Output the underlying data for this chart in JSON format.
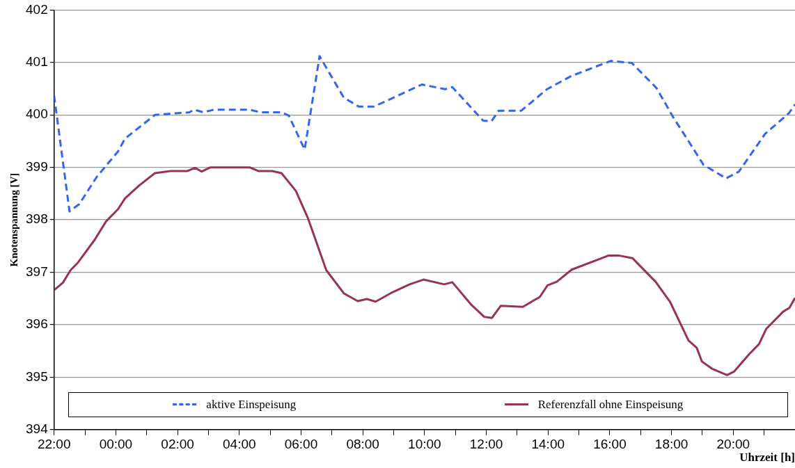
{
  "chart_data": {
    "type": "line",
    "xlabel": "Uhrzeit [h]",
    "ylabel": "Knotenspannung [V]",
    "xlim": [
      "2000-01-01T22:00",
      "2000-01-02T22:00"
    ],
    "ylim": [
      394,
      402
    ],
    "xticks": [
      {
        "value": "2000-01-01T22:00",
        "label": "22:00"
      },
      {
        "value": "2000-01-01T23:00",
        "label": null
      },
      {
        "value": "2000-01-02T00:00",
        "label": "00:00"
      },
      {
        "value": "2000-01-02T01:00",
        "label": null
      },
      {
        "value": "2000-01-02T02:00",
        "label": "02:00"
      },
      {
        "value": "2000-01-02T03:00",
        "label": null
      },
      {
        "value": "2000-01-02T04:00",
        "label": "04:00"
      },
      {
        "value": "2000-01-02T05:00",
        "label": null
      },
      {
        "value": "2000-01-02T06:00",
        "label": "06:00"
      },
      {
        "value": "2000-01-02T07:00",
        "label": null
      },
      {
        "value": "2000-01-02T08:00",
        "label": "08:00"
      },
      {
        "value": "2000-01-02T09:00",
        "label": null
      },
      {
        "value": "2000-01-02T10:00",
        "label": "10:00"
      },
      {
        "value": "2000-01-02T11:00",
        "label": null
      },
      {
        "value": "2000-01-02T12:00",
        "label": "12:00"
      },
      {
        "value": "2000-01-02T13:00",
        "label": null
      },
      {
        "value": "2000-01-02T14:00",
        "label": "14:00"
      },
      {
        "value": "2000-01-02T15:00",
        "label": null
      },
      {
        "value": "2000-01-02T16:00",
        "label": "16:00"
      },
      {
        "value": "2000-01-02T17:00",
        "label": null
      },
      {
        "value": "2000-01-02T18:00",
        "label": "18:00"
      },
      {
        "value": "2000-01-02T19:00",
        "label": null
      },
      {
        "value": "2000-01-02T20:00",
        "label": "20:00"
      },
      {
        "value": "2000-01-02T21:00",
        "label": null
      }
    ],
    "yticks": [
      394,
      395,
      396,
      397,
      398,
      399,
      400,
      401,
      402
    ],
    "grid": "y",
    "legend": "bottom",
    "marker": "none",
    "series": [
      {
        "name": "aktive Einspeisung",
        "color": "#3366ee",
        "line_style": "dashed",
        "x": [
          "2000-01-01T22:00",
          "2000-01-01T22:30",
          "2000-01-01T22:49",
          "2000-01-01T23:23",
          "2000-01-02T00:04",
          "2000-01-02T00:18",
          "2000-01-02T01:16",
          "2000-01-02T02:23",
          "2000-01-02T02:32",
          "2000-01-02T02:50",
          "2000-01-02T03:11",
          "2000-01-02T04:20",
          "2000-01-02T04:41",
          "2000-01-02T05:22",
          "2000-01-02T05:36",
          "2000-01-02T06:07",
          "2000-01-02T06:36",
          "2000-01-02T07:23",
          "2000-01-02T07:52",
          "2000-01-02T08:22",
          "2000-01-02T09:55",
          "2000-01-02T10:40",
          "2000-01-02T10:54",
          "2000-01-02T11:54",
          "2000-01-02T12:10",
          "2000-01-02T12:24",
          "2000-01-02T13:08",
          "2000-01-02T13:58",
          "2000-01-02T14:45",
          "2000-01-02T16:02",
          "2000-01-02T16:43",
          "2000-01-02T17:31",
          "2000-01-02T18:03",
          "2000-01-02T18:35",
          "2000-01-02T19:02",
          "2000-01-02T19:46",
          "2000-01-02T20:11",
          "2000-01-02T21:02",
          "2000-01-02T21:48",
          "2000-01-02T22:00"
        ],
        "values": [
          400.37,
          398.16,
          398.3,
          398.82,
          399.3,
          399.55,
          400.0,
          400.05,
          400.1,
          400.05,
          400.1,
          400.1,
          400.05,
          400.05,
          399.99,
          399.34,
          401.12,
          400.33,
          400.16,
          400.16,
          400.58,
          400.49,
          400.53,
          399.89,
          399.88,
          400.08,
          400.08,
          400.49,
          400.74,
          401.03,
          400.99,
          400.51,
          399.96,
          399.47,
          399.05,
          398.79,
          398.92,
          399.64,
          400.03,
          400.2
        ]
      },
      {
        "name": "Referenzfall ohne Einspeisung",
        "color": "#993355",
        "line_style": "solid",
        "x": [
          "2000-01-01T22:00",
          "2000-01-01T22:17",
          "2000-01-01T22:32",
          "2000-01-01T22:46",
          "2000-01-01T23:19",
          "2000-01-01T23:41",
          "2000-01-02T00:04",
          "2000-01-02T00:18",
          "2000-01-02T00:46",
          "2000-01-02T01:16",
          "2000-01-02T01:46",
          "2000-01-02T02:19",
          "2000-01-02T02:34",
          "2000-01-02T02:47",
          "2000-01-02T03:04",
          "2000-01-02T04:20",
          "2000-01-02T04:37",
          "2000-01-02T05:04",
          "2000-01-02T05:22",
          "2000-01-02T05:50",
          "2000-01-02T06:13",
          "2000-01-02T06:49",
          "2000-01-02T07:23",
          "2000-01-02T07:50",
          "2000-01-02T08:08",
          "2000-01-02T08:25",
          "2000-01-02T08:54",
          "2000-01-02T09:31",
          "2000-01-02T09:58",
          "2000-01-02T10:38",
          "2000-01-02T10:54",
          "2000-01-02T11:30",
          "2000-01-02T11:56",
          "2000-01-02T12:11",
          "2000-01-02T12:28",
          "2000-01-02T13:11",
          "2000-01-02T13:44",
          "2000-01-02T13:59",
          "2000-01-02T14:17",
          "2000-01-02T14:46",
          "2000-01-02T15:58",
          "2000-01-02T16:17",
          "2000-01-02T16:44",
          "2000-01-02T17:29",
          "2000-01-02T17:57",
          "2000-01-02T18:33",
          "2000-01-02T18:49",
          "2000-01-02T18:59",
          "2000-01-02T19:19",
          "2000-01-02T19:48",
          "2000-01-02T20:02",
          "2000-01-02T20:31",
          "2000-01-02T20:50",
          "2000-01-02T21:04",
          "2000-01-02T21:37",
          "2000-01-02T21:49",
          "2000-01-02T22:00"
        ],
        "values": [
          396.66,
          396.8,
          397.04,
          397.18,
          397.62,
          397.97,
          398.2,
          398.41,
          398.66,
          398.89,
          398.93,
          398.93,
          398.99,
          398.92,
          399.0,
          399.0,
          398.93,
          398.93,
          398.89,
          398.55,
          398.04,
          397.04,
          396.6,
          396.45,
          396.49,
          396.44,
          396.6,
          396.77,
          396.86,
          396.77,
          396.81,
          396.39,
          396.15,
          396.13,
          396.36,
          396.34,
          396.53,
          396.75,
          396.82,
          397.05,
          397.32,
          397.32,
          397.27,
          396.82,
          396.44,
          395.7,
          395.56,
          395.3,
          395.16,
          395.04,
          395.11,
          395.44,
          395.63,
          395.92,
          396.25,
          396.32,
          396.51
        ]
      }
    ]
  }
}
